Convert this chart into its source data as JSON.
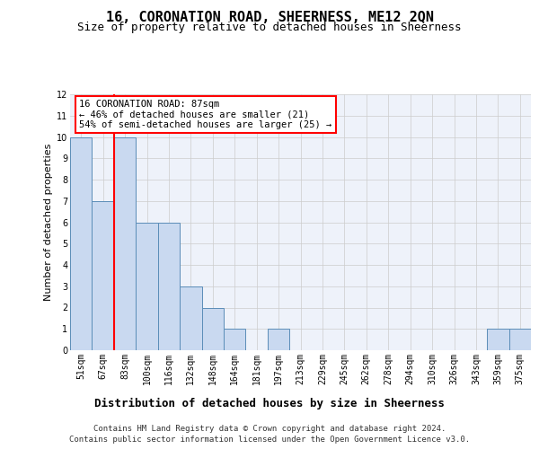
{
  "title": "16, CORONATION ROAD, SHEERNESS, ME12 2QN",
  "subtitle": "Size of property relative to detached houses in Sheerness",
  "xlabel": "Distribution of detached houses by size in Sheerness",
  "ylabel": "Number of detached properties",
  "categories": [
    "51sqm",
    "67sqm",
    "83sqm",
    "100sqm",
    "116sqm",
    "132sqm",
    "148sqm",
    "164sqm",
    "181sqm",
    "197sqm",
    "213sqm",
    "229sqm",
    "245sqm",
    "262sqm",
    "278sqm",
    "294sqm",
    "310sqm",
    "326sqm",
    "343sqm",
    "359sqm",
    "375sqm"
  ],
  "values": [
    10,
    7,
    10,
    6,
    6,
    3,
    2,
    1,
    0,
    1,
    0,
    0,
    0,
    0,
    0,
    0,
    0,
    0,
    0,
    1,
    1
  ],
  "bar_color": "#c9d9f0",
  "bar_edge_color": "#5b8db8",
  "red_line_x": 1.5,
  "ylim": [
    0,
    12
  ],
  "yticks": [
    0,
    1,
    2,
    3,
    4,
    5,
    6,
    7,
    8,
    9,
    10,
    11,
    12
  ],
  "annotation_text": "16 CORONATION ROAD: 87sqm\n← 46% of detached houses are smaller (21)\n54% of semi-detached houses are larger (25) →",
  "footer_line1": "Contains HM Land Registry data © Crown copyright and database right 2024.",
  "footer_line2": "Contains public sector information licensed under the Open Government Licence v3.0.",
  "bg_color": "#eef2fa",
  "grid_color": "#cccccc",
  "title_fontsize": 11,
  "subtitle_fontsize": 9,
  "ylabel_fontsize": 8,
  "xlabel_fontsize": 9,
  "tick_fontsize": 7,
  "annot_fontsize": 7.5,
  "footer_fontsize": 6.5
}
